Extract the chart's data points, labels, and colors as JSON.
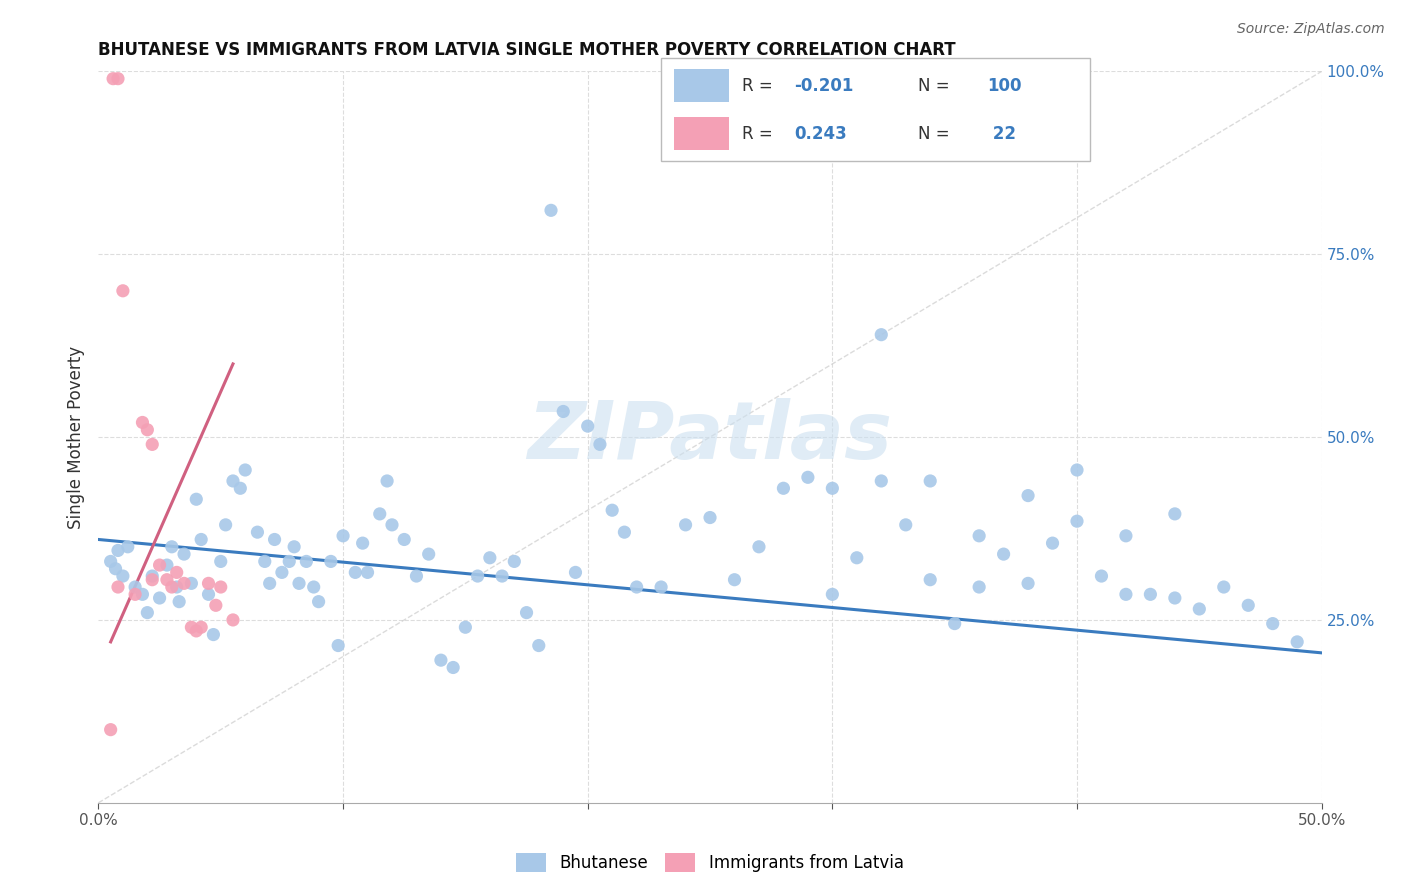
{
  "title": "BHUTANESE VS IMMIGRANTS FROM LATVIA SINGLE MOTHER POVERTY CORRELATION CHART",
  "source": "Source: ZipAtlas.com",
  "ylabel": "Single Mother Poverty",
  "xlim": [
    0.0,
    0.5
  ],
  "ylim": [
    0.0,
    1.0
  ],
  "blue_R": -0.201,
  "blue_N": 100,
  "pink_R": 0.243,
  "pink_N": 22,
  "blue_color": "#a8c8e8",
  "pink_color": "#f4a0b5",
  "blue_line_color": "#3a7bbf",
  "pink_line_color": "#d06080",
  "diagonal_color": "#cccccc",
  "grid_color": "#dddddd",
  "watermark_color": "#cce0f0",
  "blue_scatter_x": [
    0.005,
    0.007,
    0.008,
    0.01,
    0.012,
    0.015,
    0.018,
    0.02,
    0.022,
    0.025,
    0.028,
    0.03,
    0.032,
    0.033,
    0.035,
    0.038,
    0.04,
    0.042,
    0.045,
    0.047,
    0.05,
    0.052,
    0.055,
    0.058,
    0.06,
    0.065,
    0.068,
    0.07,
    0.072,
    0.075,
    0.078,
    0.08,
    0.082,
    0.085,
    0.088,
    0.09,
    0.095,
    0.098,
    0.1,
    0.105,
    0.108,
    0.11,
    0.115,
    0.118,
    0.12,
    0.125,
    0.13,
    0.135,
    0.14,
    0.145,
    0.15,
    0.155,
    0.16,
    0.165,
    0.17,
    0.175,
    0.18,
    0.185,
    0.19,
    0.195,
    0.2,
    0.205,
    0.21,
    0.215,
    0.22,
    0.23,
    0.24,
    0.25,
    0.26,
    0.27,
    0.28,
    0.29,
    0.3,
    0.31,
    0.32,
    0.33,
    0.34,
    0.35,
    0.36,
    0.37,
    0.38,
    0.39,
    0.4,
    0.41,
    0.42,
    0.43,
    0.44,
    0.45,
    0.46,
    0.47,
    0.48,
    0.49,
    0.3,
    0.32,
    0.34,
    0.36,
    0.38,
    0.4,
    0.42,
    0.44
  ],
  "blue_scatter_y": [
    0.33,
    0.32,
    0.345,
    0.31,
    0.35,
    0.295,
    0.285,
    0.26,
    0.31,
    0.28,
    0.325,
    0.35,
    0.295,
    0.275,
    0.34,
    0.3,
    0.415,
    0.36,
    0.285,
    0.23,
    0.33,
    0.38,
    0.44,
    0.43,
    0.455,
    0.37,
    0.33,
    0.3,
    0.36,
    0.315,
    0.33,
    0.35,
    0.3,
    0.33,
    0.295,
    0.275,
    0.33,
    0.215,
    0.365,
    0.315,
    0.355,
    0.315,
    0.395,
    0.44,
    0.38,
    0.36,
    0.31,
    0.34,
    0.195,
    0.185,
    0.24,
    0.31,
    0.335,
    0.31,
    0.33,
    0.26,
    0.215,
    0.81,
    0.535,
    0.315,
    0.515,
    0.49,
    0.4,
    0.37,
    0.295,
    0.295,
    0.38,
    0.39,
    0.305,
    0.35,
    0.43,
    0.445,
    0.285,
    0.335,
    0.64,
    0.38,
    0.305,
    0.245,
    0.295,
    0.34,
    0.3,
    0.355,
    0.455,
    0.31,
    0.365,
    0.285,
    0.28,
    0.265,
    0.295,
    0.27,
    0.245,
    0.22,
    0.43,
    0.44,
    0.44,
    0.365,
    0.42,
    0.385,
    0.285,
    0.395
  ],
  "pink_scatter_x": [
    0.005,
    0.006,
    0.008,
    0.01,
    0.015,
    0.018,
    0.02,
    0.022,
    0.022,
    0.025,
    0.028,
    0.03,
    0.032,
    0.035,
    0.038,
    0.04,
    0.042,
    0.045,
    0.048,
    0.05,
    0.055,
    0.008
  ],
  "pink_scatter_y": [
    0.1,
    0.99,
    0.99,
    0.7,
    0.285,
    0.52,
    0.51,
    0.49,
    0.305,
    0.325,
    0.305,
    0.295,
    0.315,
    0.3,
    0.24,
    0.235,
    0.24,
    0.3,
    0.27,
    0.295,
    0.25,
    0.295
  ],
  "blue_line_x": [
    0.0,
    0.5
  ],
  "blue_line_y": [
    0.36,
    0.205
  ],
  "pink_line_x": [
    0.005,
    0.055
  ],
  "pink_line_y": [
    0.22,
    0.6
  ]
}
